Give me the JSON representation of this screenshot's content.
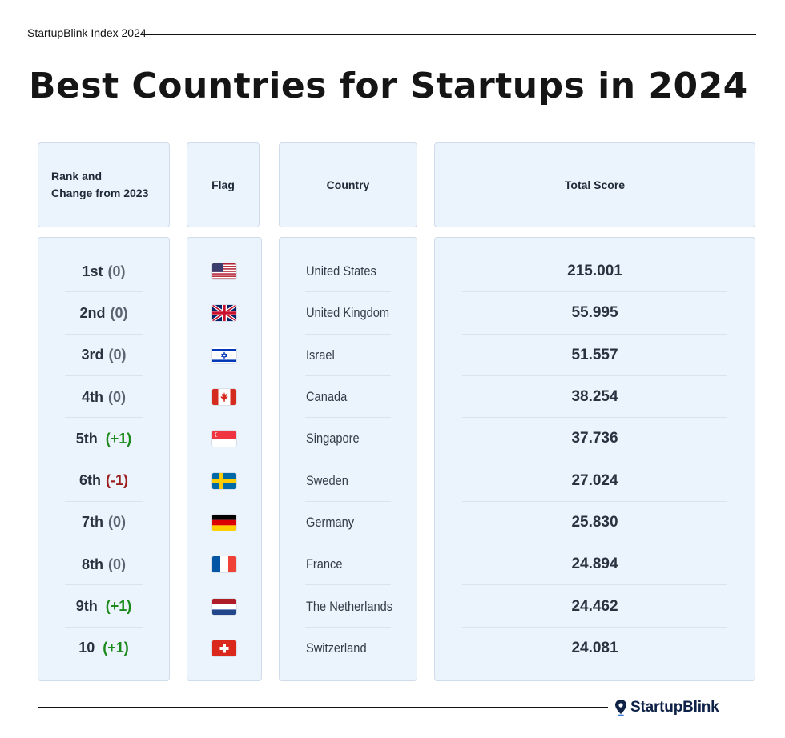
{
  "header": {
    "index_label": "StartupBlink Index 2024",
    "title": "Best Countries for Startups in 2024"
  },
  "columns": {
    "rank_line1": "Rank and",
    "rank_line2": "Change from 2023",
    "flag": "Flag",
    "country": "Country",
    "score": "Total Score"
  },
  "rows": [
    {
      "rank": "1st",
      "change": "(0)",
      "change_type": "same",
      "flag": "us-flag",
      "country": "United States",
      "score": "215.001"
    },
    {
      "rank": "2nd",
      "change": "(0)",
      "change_type": "same",
      "flag": "uk-flag",
      "country": "United Kingdom",
      "score": "55.995"
    },
    {
      "rank": "3rd",
      "change": "(0)",
      "change_type": "same",
      "flag": "israel-flag",
      "country": "Israel",
      "score": "51.557"
    },
    {
      "rank": "4th",
      "change": "(0)",
      "change_type": "same",
      "flag": "canada-flag",
      "country": "Canada",
      "score": "38.254"
    },
    {
      "rank": "5th",
      "change": "(+1)",
      "change_type": "up",
      "flag": "singapore-flag",
      "country": "Singapore",
      "score": "37.736"
    },
    {
      "rank": "6th",
      "change": "(-1)",
      "change_type": "down",
      "flag": "sweden-flag",
      "country": "Sweden",
      "score": "27.024"
    },
    {
      "rank": "7th",
      "change": "(0)",
      "change_type": "same",
      "flag": "germany-flag",
      "country": "Germany",
      "score": "25.830"
    },
    {
      "rank": "8th",
      "change": "(0)",
      "change_type": "same",
      "flag": "france-flag",
      "country": "France",
      "score": "24.894"
    },
    {
      "rank": "9th",
      "change": "(+1)",
      "change_type": "up",
      "flag": "netherlands-flag",
      "country": "The Netherlands",
      "score": "24.462"
    },
    {
      "rank": "10",
      "change": "(+1)",
      "change_type": "up",
      "flag": "switzerland-flag",
      "country": "Switzerland",
      "score": "24.081"
    }
  ],
  "colors": {
    "up": "#1d8a1d",
    "down": "#9a1c1c",
    "same": "#5a6470",
    "panel": "#ebf3fc",
    "brand": "#0e2247"
  },
  "footer": {
    "brand": "StartupBlink",
    "brand_icon": "map-pin-icon"
  }
}
